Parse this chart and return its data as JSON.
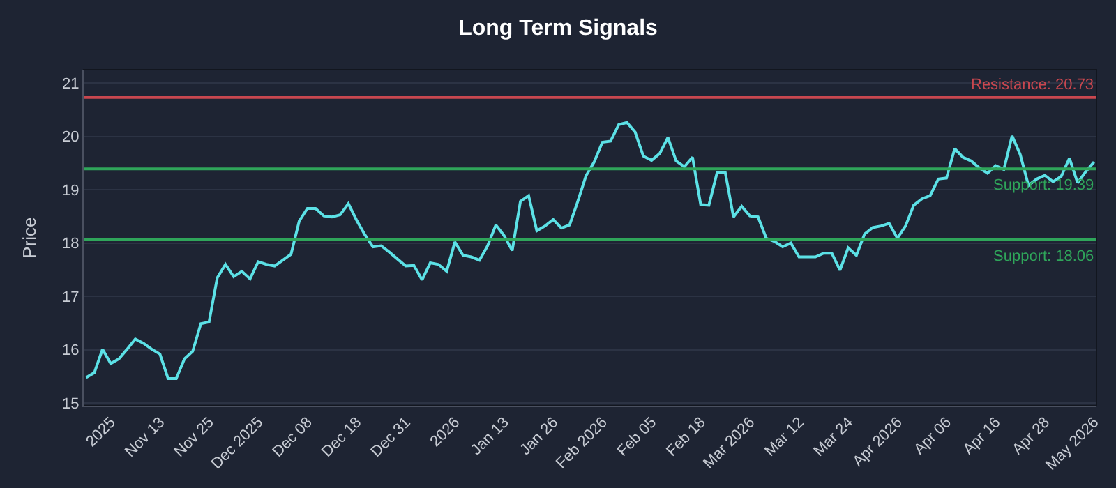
{
  "chart_data": {
    "type": "line",
    "title": "Long Term Signals",
    "ylabel": "Price",
    "categories": [
      null,
      null,
      null,
      "2025",
      null,
      null,
      null,
      null,
      null,
      "Nov 13",
      null,
      null,
      null,
      null,
      null,
      "Nov 25",
      null,
      null,
      null,
      null,
      null,
      "Dec 2025",
      null,
      null,
      null,
      null,
      null,
      "Dec 08",
      null,
      null,
      null,
      null,
      null,
      "Dec 18",
      null,
      null,
      null,
      null,
      null,
      "Dec 31",
      null,
      null,
      null,
      null,
      null,
      "2026",
      null,
      null,
      null,
      null,
      null,
      "Jan 13",
      null,
      null,
      null,
      null,
      null,
      "Jan 26",
      null,
      null,
      null,
      null,
      null,
      "Feb 2026",
      null,
      null,
      null,
      null,
      null,
      "Feb 05",
      null,
      null,
      null,
      null,
      null,
      "Feb 18",
      null,
      null,
      null,
      null,
      null,
      "Mar 2026",
      null,
      null,
      null,
      null,
      null,
      "Mar 12",
      null,
      null,
      null,
      null,
      null,
      "Mar 24",
      null,
      null,
      null,
      null,
      null,
      "Apr 2026",
      null,
      null,
      null,
      null,
      null,
      "Apr 06",
      null,
      null,
      null,
      null,
      null,
      "Apr 16",
      null,
      null,
      null,
      null,
      null,
      "Apr 28",
      null,
      null,
      null,
      null,
      null,
      "May 2026"
    ],
    "series": [
      {
        "color": "#5ce1e6",
        "values": [
          15.48,
          15.57,
          16.01,
          15.74,
          15.83,
          16.01,
          16.2,
          16.12,
          16.01,
          15.92,
          15.46,
          15.46,
          15.83,
          15.97,
          16.49,
          16.52,
          17.35,
          17.6,
          17.37,
          17.47,
          17.33,
          17.65,
          17.6,
          17.57,
          17.68,
          17.79,
          18.41,
          18.65,
          18.65,
          18.51,
          18.49,
          18.53,
          18.74,
          18.43,
          18.16,
          17.93,
          17.95,
          17.83,
          17.7,
          17.57,
          17.58,
          17.31,
          17.63,
          17.6,
          17.47,
          18.02,
          17.77,
          17.74,
          17.68,
          17.95,
          18.34,
          18.14,
          17.86,
          18.78,
          18.89,
          18.23,
          18.32,
          18.44,
          18.28,
          18.34,
          18.78,
          19.26,
          19.52,
          19.89,
          19.91,
          20.22,
          20.26,
          20.08,
          19.63,
          19.55,
          19.68,
          19.98,
          19.54,
          19.43,
          19.61,
          18.72,
          18.71,
          19.32,
          19.32,
          18.49,
          18.69,
          18.51,
          18.49,
          18.09,
          18.03,
          17.93,
          18.0,
          17.74,
          17.74,
          17.74,
          17.81,
          17.81,
          17.49,
          17.91,
          17.77,
          18.17,
          18.29,
          18.32,
          18.37,
          18.09,
          18.32,
          18.71,
          18.83,
          18.89,
          19.2,
          19.22,
          19.77,
          19.61,
          19.54,
          19.41,
          19.31,
          19.45,
          19.38,
          20.01,
          19.66,
          19.08,
          19.2,
          19.27,
          19.15,
          19.25,
          19.59,
          19.13,
          19.34,
          19.52
        ]
      }
    ],
    "ylim": [
      14.95,
      21.25
    ],
    "yticks": [
      15,
      16,
      17,
      18,
      19,
      20,
      21
    ],
    "grid": "y",
    "marker": "none",
    "line_style": "solid",
    "ref_lines": [
      {
        "axis": "y",
        "value": 20.73,
        "label": "Resistance: 20.73",
        "color": "#c9474f"
      },
      {
        "axis": "y",
        "value": 19.39,
        "label": "Support: 19.39",
        "color": "#2fa55a"
      },
      {
        "axis": "y",
        "value": 18.06,
        "label": "Support: 18.06",
        "color": "#2fa55a"
      }
    ]
  }
}
